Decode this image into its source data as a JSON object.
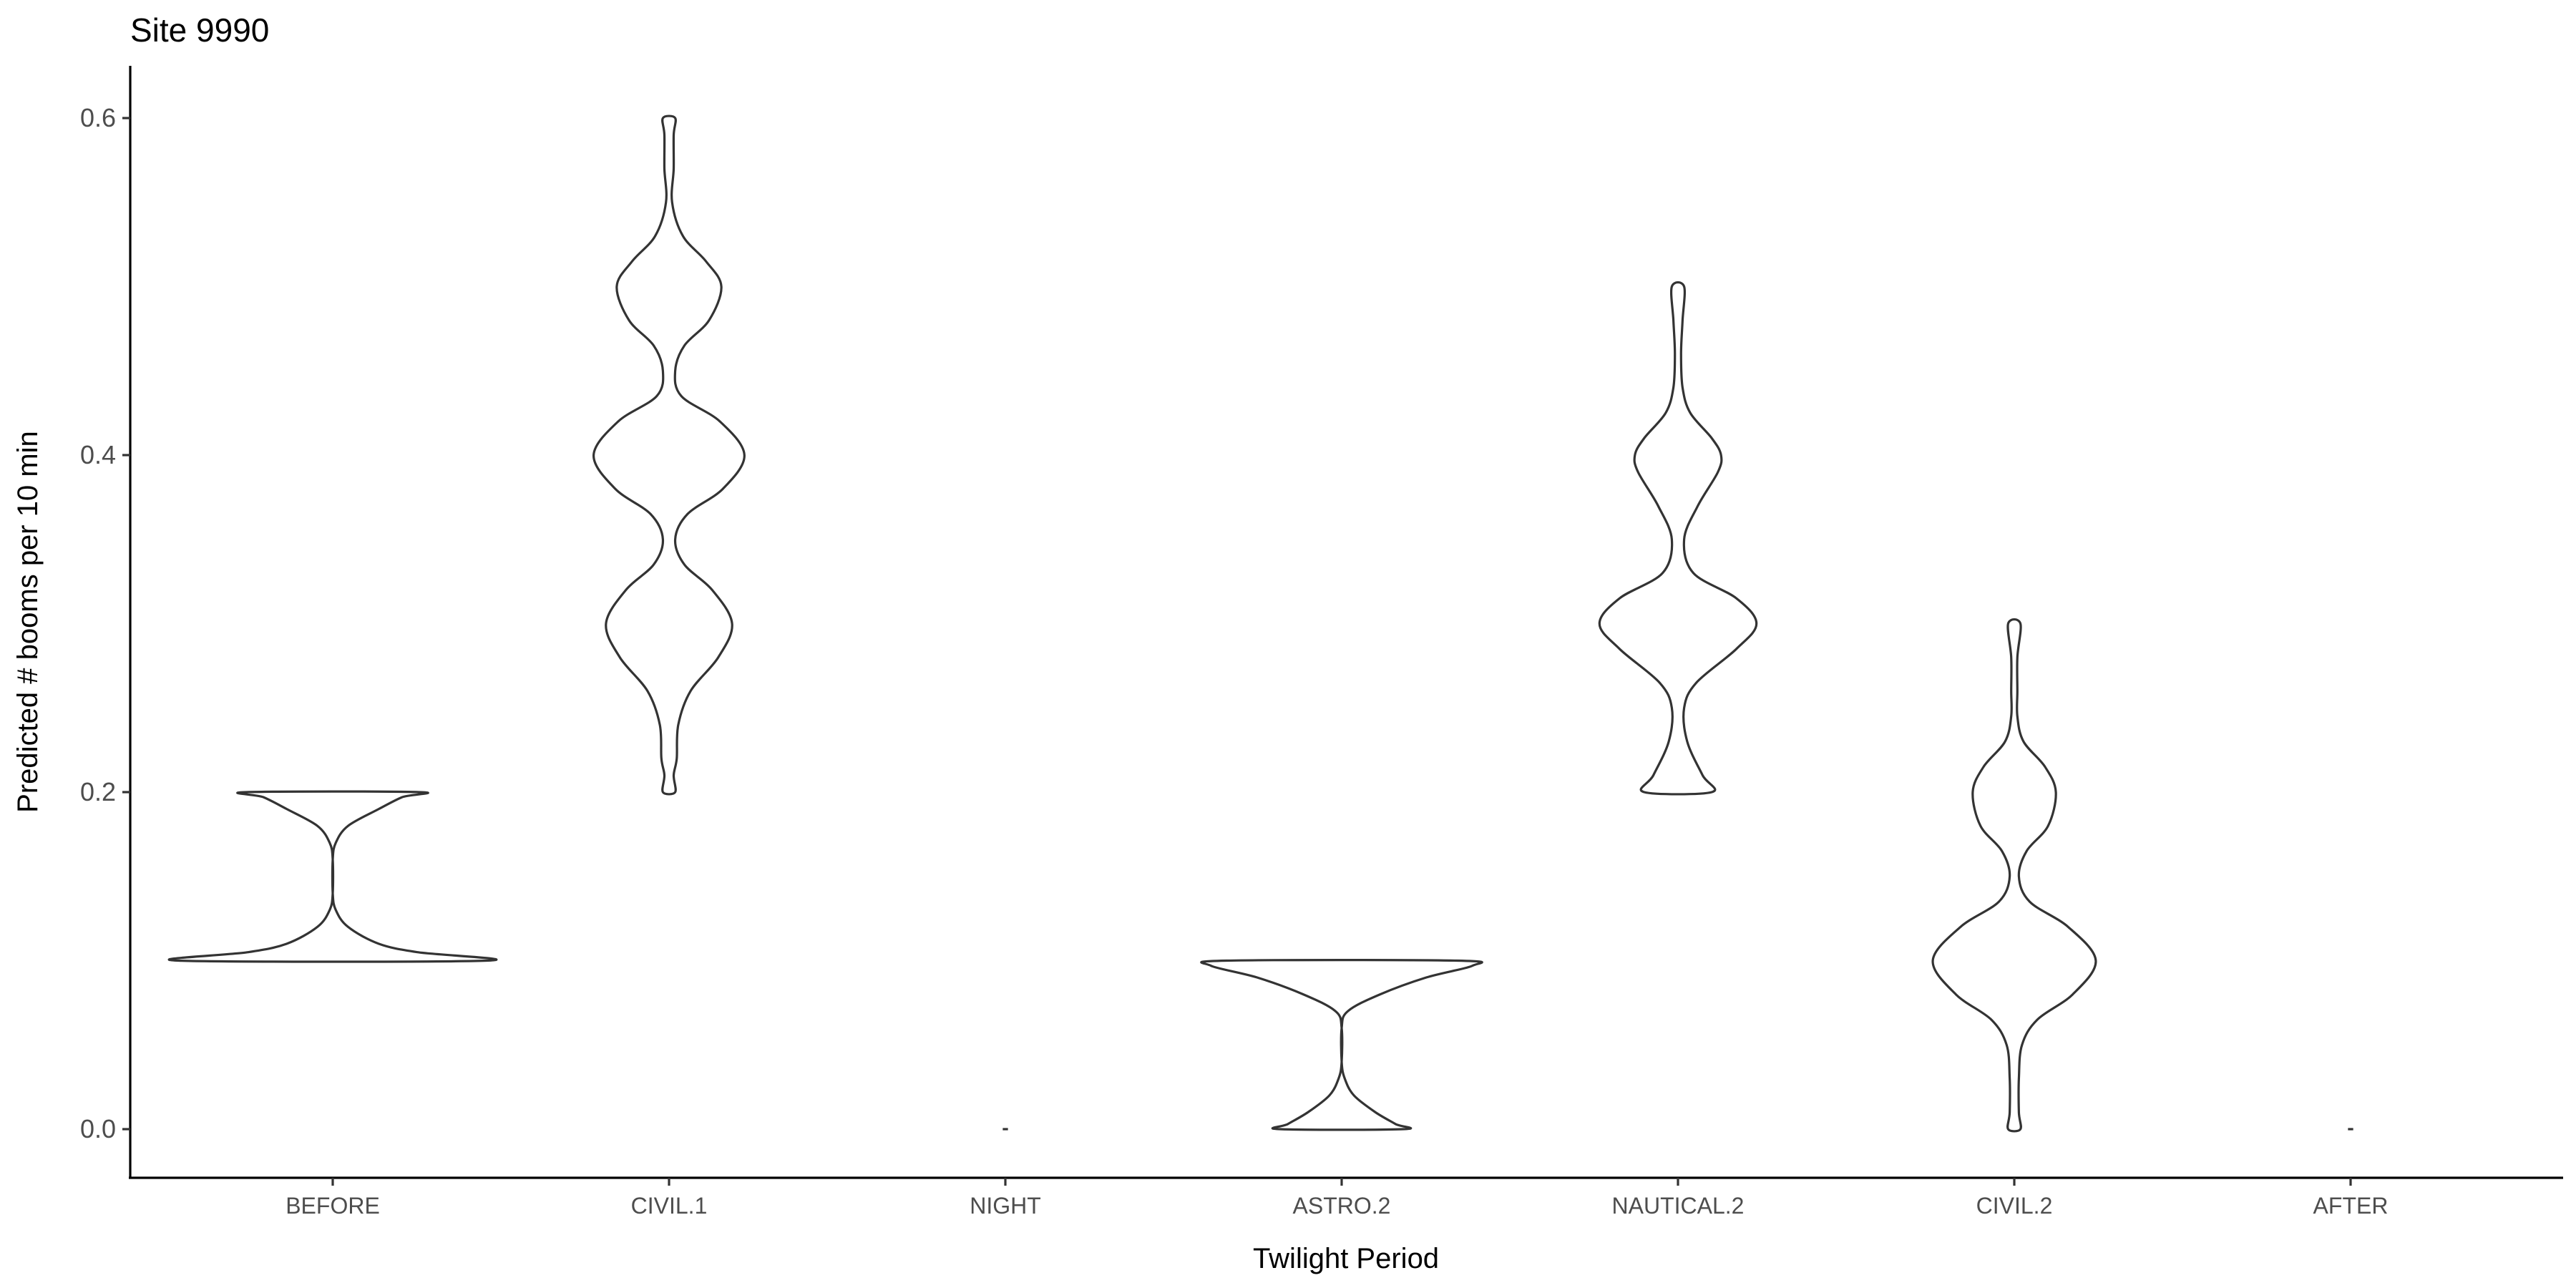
{
  "chart_data": {
    "type": "violin",
    "title": "Site 9990",
    "xlabel": "Twilight Period",
    "ylabel": "Predicted # booms per 10 min",
    "ylim": [
      -0.03,
      0.63
    ],
    "yticks": [
      0.0,
      0.2,
      0.4,
      0.6
    ],
    "ytick_labels": [
      "0.0",
      "0.2",
      "0.4",
      "0.6"
    ],
    "grid": false,
    "legend": "none",
    "line_color": "#333333",
    "fill_color": "#ffffff",
    "categories": [
      "BEFORE",
      "CIVIL.1",
      "NIGHT",
      "ASTRO.2",
      "NAUTICAL.2",
      "CIVIL.2",
      "AFTER"
    ],
    "series": [
      {
        "category": "BEFORE",
        "min": 0.1,
        "max": 0.2,
        "density": [
          [
            0.1,
            1.0
          ],
          [
            0.105,
            0.55
          ],
          [
            0.11,
            0.3
          ],
          [
            0.12,
            0.1
          ],
          [
            0.13,
            0.02
          ],
          [
            0.14,
            0.0
          ],
          [
            0.16,
            0.0
          ],
          [
            0.17,
            0.02
          ],
          [
            0.18,
            0.1
          ],
          [
            0.19,
            0.3
          ],
          [
            0.197,
            0.45
          ],
          [
            0.2,
            0.56
          ]
        ]
      },
      {
        "category": "CIVIL.1",
        "min": 0.2,
        "max": 0.6,
        "density": [
          [
            0.2,
            0.04
          ],
          [
            0.21,
            0.03
          ],
          [
            0.22,
            0.05
          ],
          [
            0.24,
            0.06
          ],
          [
            0.26,
            0.14
          ],
          [
            0.28,
            0.32
          ],
          [
            0.3,
            0.41
          ],
          [
            0.32,
            0.28
          ],
          [
            0.335,
            0.1
          ],
          [
            0.35,
            0.04
          ],
          [
            0.365,
            0.12
          ],
          [
            0.38,
            0.35
          ],
          [
            0.4,
            0.49
          ],
          [
            0.42,
            0.33
          ],
          [
            0.435,
            0.08
          ],
          [
            0.45,
            0.04
          ],
          [
            0.465,
            0.1
          ],
          [
            0.48,
            0.26
          ],
          [
            0.5,
            0.34
          ],
          [
            0.515,
            0.24
          ],
          [
            0.53,
            0.09
          ],
          [
            0.55,
            0.02
          ],
          [
            0.57,
            0.03
          ],
          [
            0.59,
            0.03
          ],
          [
            0.6,
            0.04
          ]
        ]
      },
      {
        "category": "NIGHT",
        "min": 0.0,
        "max": 0.0,
        "density": [
          [
            0.0,
            0.1
          ]
        ]
      },
      {
        "category": "ASTRO.2",
        "min": 0.0,
        "max": 0.1,
        "density": [
          [
            0.0,
            0.4
          ],
          [
            0.003,
            0.35
          ],
          [
            0.01,
            0.22
          ],
          [
            0.02,
            0.08
          ],
          [
            0.03,
            0.02
          ],
          [
            0.04,
            0.0
          ],
          [
            0.06,
            0.0
          ],
          [
            0.07,
            0.04
          ],
          [
            0.08,
            0.25
          ],
          [
            0.09,
            0.55
          ],
          [
            0.097,
            0.85
          ],
          [
            0.1,
            0.75
          ]
        ]
      },
      {
        "category": "NAUTICAL.2",
        "min": 0.2,
        "max": 0.5,
        "density": [
          [
            0.2,
            0.22
          ],
          [
            0.21,
            0.16
          ],
          [
            0.23,
            0.06
          ],
          [
            0.25,
            0.04
          ],
          [
            0.265,
            0.12
          ],
          [
            0.285,
            0.38
          ],
          [
            0.3,
            0.51
          ],
          [
            0.315,
            0.38
          ],
          [
            0.33,
            0.1
          ],
          [
            0.35,
            0.04
          ],
          [
            0.37,
            0.13
          ],
          [
            0.39,
            0.26
          ],
          [
            0.4,
            0.28
          ],
          [
            0.41,
            0.22
          ],
          [
            0.425,
            0.08
          ],
          [
            0.44,
            0.03
          ],
          [
            0.46,
            0.02
          ],
          [
            0.48,
            0.03
          ],
          [
            0.5,
            0.04
          ]
        ]
      },
      {
        "category": "CIVIL.2",
        "min": 0.0,
        "max": 0.3,
        "density": [
          [
            0.0,
            0.04
          ],
          [
            0.01,
            0.03
          ],
          [
            0.03,
            0.03
          ],
          [
            0.05,
            0.05
          ],
          [
            0.065,
            0.15
          ],
          [
            0.08,
            0.38
          ],
          [
            0.1,
            0.53
          ],
          [
            0.12,
            0.35
          ],
          [
            0.135,
            0.1
          ],
          [
            0.15,
            0.03
          ],
          [
            0.165,
            0.08
          ],
          [
            0.18,
            0.22
          ],
          [
            0.2,
            0.27
          ],
          [
            0.215,
            0.2
          ],
          [
            0.23,
            0.06
          ],
          [
            0.245,
            0.02
          ],
          [
            0.26,
            0.02
          ],
          [
            0.28,
            0.02
          ],
          [
            0.3,
            0.04
          ]
        ]
      },
      {
        "category": "AFTER",
        "min": 0.0,
        "max": 0.0,
        "density": [
          [
            0.0,
            0.1
          ]
        ]
      }
    ]
  }
}
